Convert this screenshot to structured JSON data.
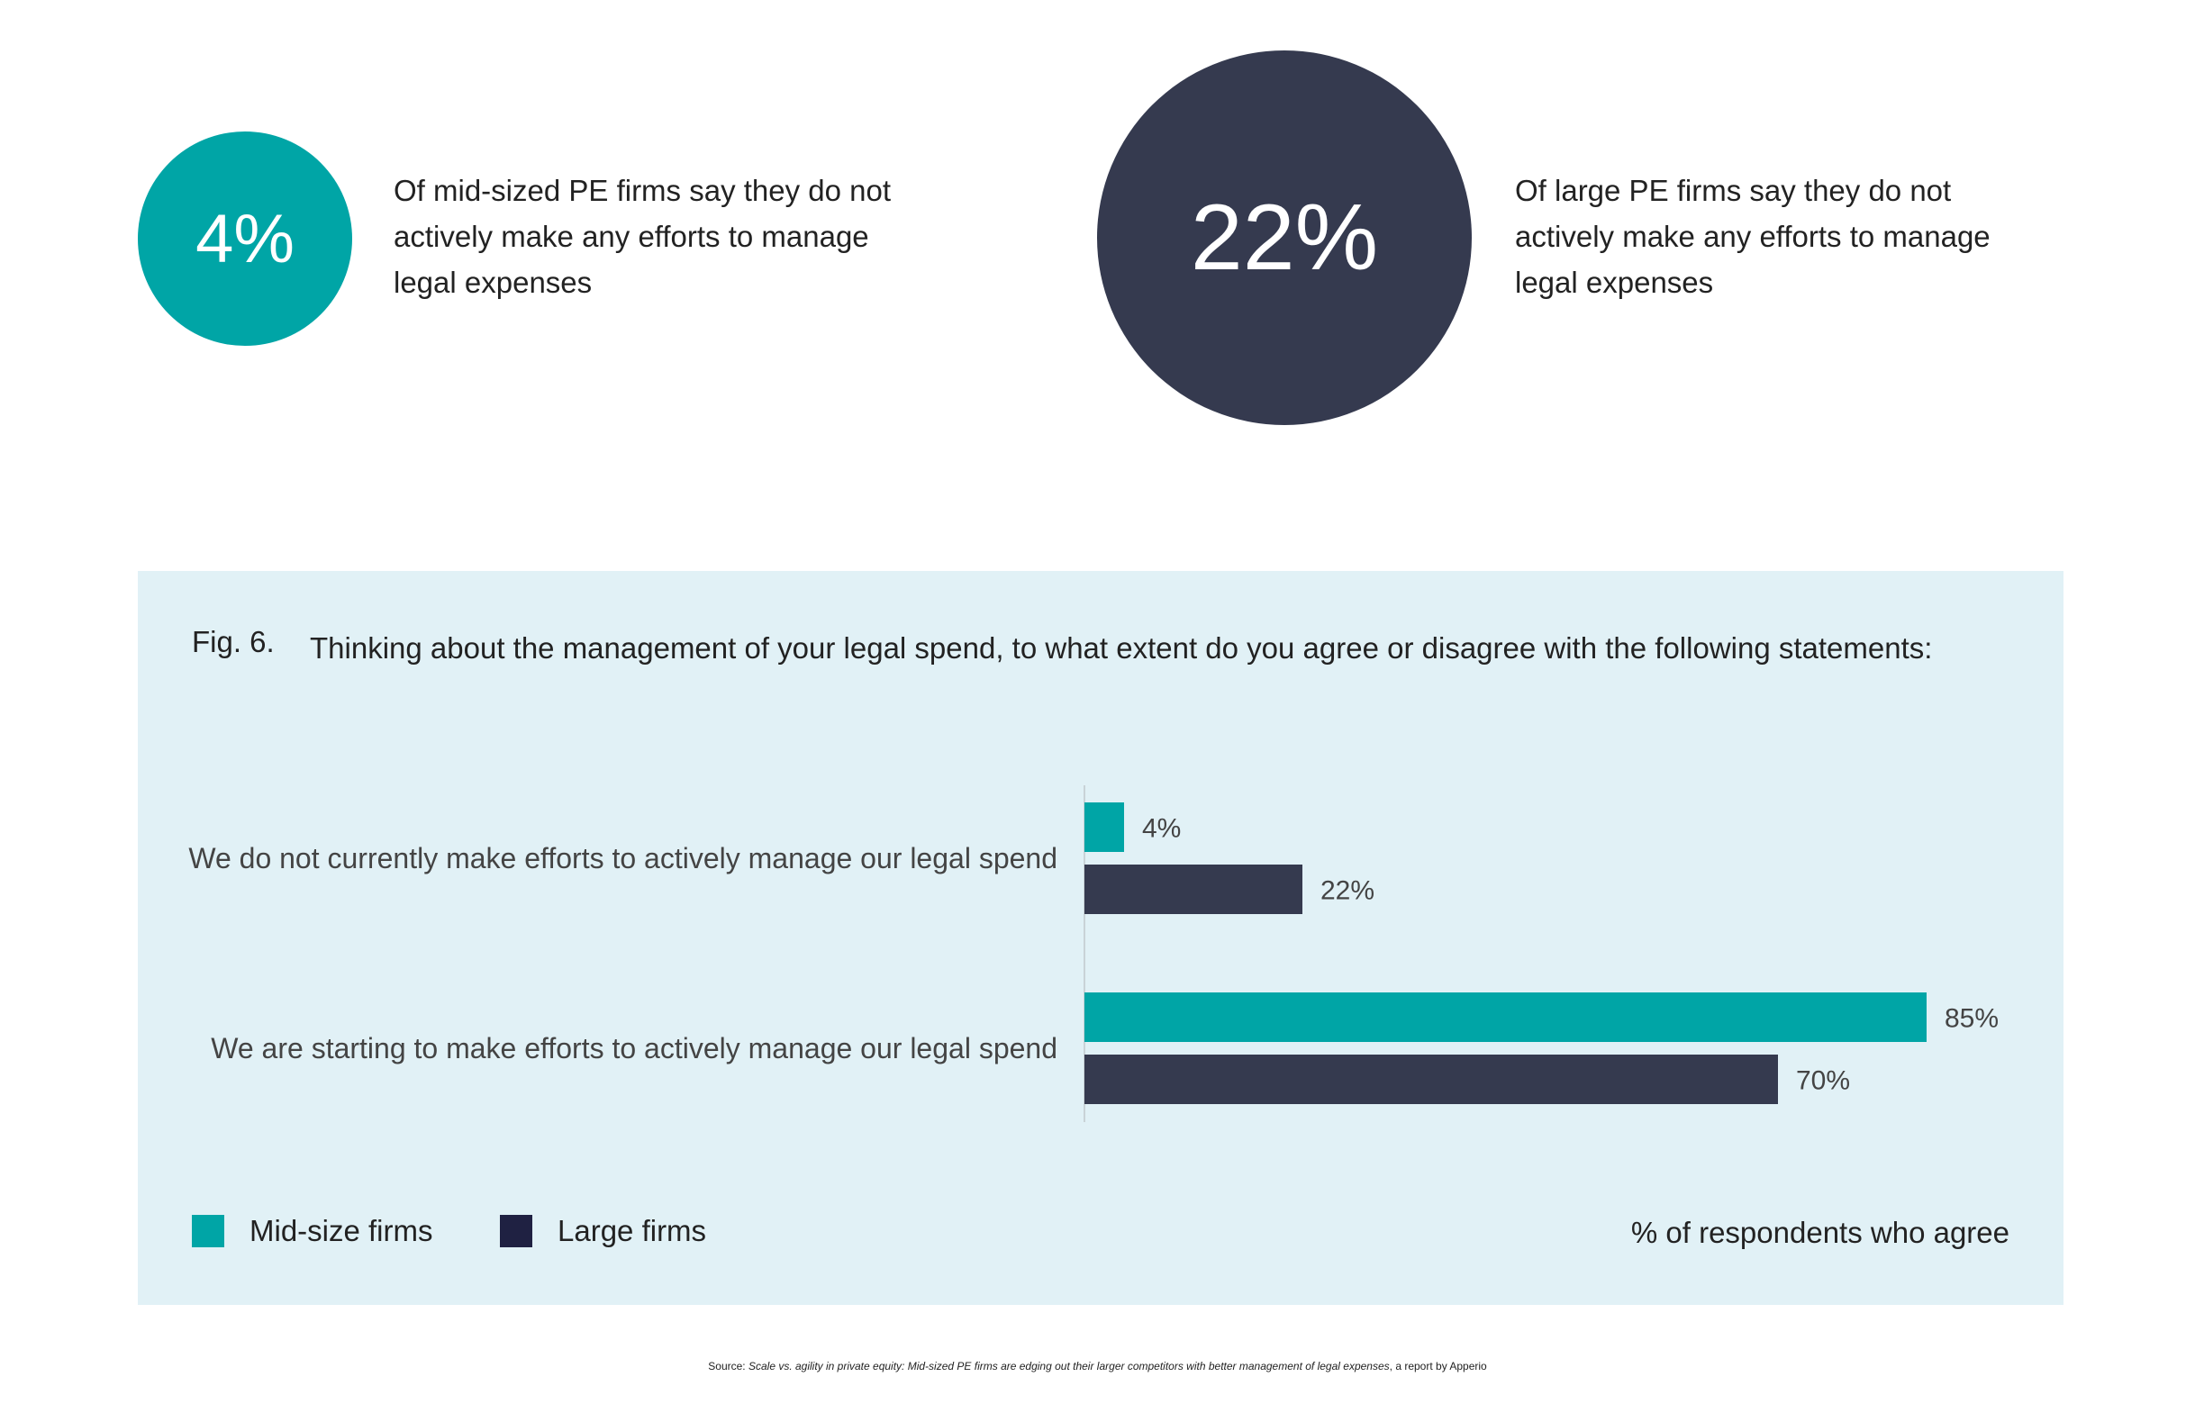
{
  "stats": {
    "mid": {
      "value": "4%",
      "text": "Of mid-sized PE firms say they do not actively make any efforts to manage legal expenses",
      "color": "#00a5a6"
    },
    "large": {
      "value": "22%",
      "text": "Of large PE firms say they do not actively make any efforts to manage legal expenses",
      "color": "#353a4f"
    }
  },
  "figure": {
    "label": "Fig. 6.",
    "title": "Thinking about the management of your legal spend, to what extent do you agree or disagree with the following statements:",
    "axis_note": "% of respondents who agree"
  },
  "chart_data": {
    "type": "bar",
    "orientation": "horizontal",
    "title": "Thinking about the management of your legal spend, to what extent do you agree or disagree with the following statements:",
    "categories": [
      "We do not currently make efforts to actively manage our legal spend",
      "We are starting to make efforts to actively manage our legal spend"
    ],
    "series": [
      {
        "name": "Mid-size firms",
        "values": [
          4,
          85
        ],
        "color": "#00a5a6"
      },
      {
        "name": "Large firms",
        "values": [
          22,
          70
        ],
        "color": "#353a4f"
      }
    ],
    "value_labels": [
      [
        "4%",
        "85%"
      ],
      [
        "22%",
        "70%"
      ]
    ],
    "xlabel": "% of respondents who agree",
    "xlim": [
      0,
      100
    ],
    "grid": false,
    "legend": "bottom-left"
  },
  "legend": {
    "mid": {
      "label": "Mid-size firms",
      "color": "#00a5a6"
    },
    "large": {
      "label": "Large firms",
      "color": "#1f2142"
    }
  },
  "source": {
    "prefix": "Source: ",
    "title": "Scale vs. agility in private equity: Mid-sized PE firms are edging out their larger competitors with better management of legal expenses",
    "suffix": ", a report by Apperio"
  }
}
